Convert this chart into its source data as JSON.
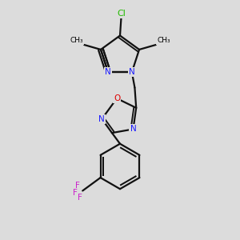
{
  "bg_color": "#dcdcdc",
  "N_color": "#1a1aff",
  "O_color": "#dd0000",
  "Cl_color": "#22bb00",
  "F_color": "#cc22cc",
  "bond_color": "#111111",
  "bond_lw": 1.6,
  "xlim": [
    0,
    1
  ],
  "ylim": [
    0,
    1
  ]
}
